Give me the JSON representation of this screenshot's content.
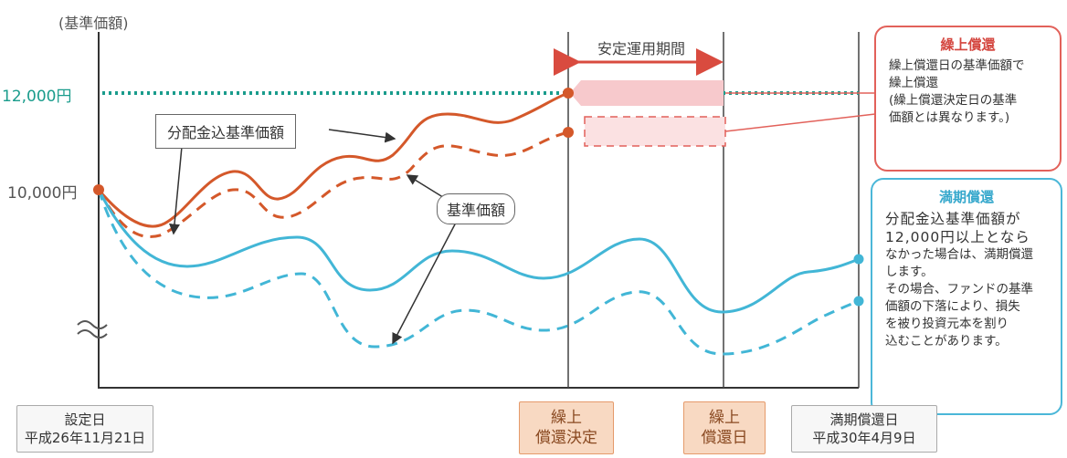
{
  "y_axis_label": "(基準価額)",
  "levels": {
    "upper": "12,000円",
    "initial": "10,000円"
  },
  "period_label": "安定運用期間",
  "callouts": {
    "reinvested_nav": "分配金込基準価額",
    "nav": "基準価額"
  },
  "notes": {
    "early_redemption": {
      "title": "繰上償還",
      "text": [
        "繰上償還日の基準価額で",
        "繰上償還",
        "(繰上償還決定日の基準",
        "価額とは異なります。)"
      ]
    },
    "maturity_redemption": {
      "title": "満期償還",
      "lead": [
        "分配金込基準価額が",
        "12,000円以上となら"
      ],
      "text": [
        "なかった場合は、満期償還",
        "します。",
        "その場合、ファンドの基準",
        "価額の下落により、損失",
        "を被り投資元本を割り",
        "込むことがあります。"
      ]
    }
  },
  "timeline": {
    "setup": {
      "label": "設定日",
      "date": "平成26年11月21日"
    },
    "decision": {
      "line1": "繰上",
      "line2": "償還決定"
    },
    "redemption": {
      "line1": "繰上",
      "line2": "償還日"
    },
    "maturity": {
      "label": "満期償還日",
      "date": "平成30年4月9日"
    }
  },
  "colors": {
    "reinvested_line": "#d4582a",
    "nav_line": "#42b6d6",
    "target_line": "#1a9c8c",
    "band_fill": "#f7c9cc",
    "band_stroke": "#e2615a"
  }
}
